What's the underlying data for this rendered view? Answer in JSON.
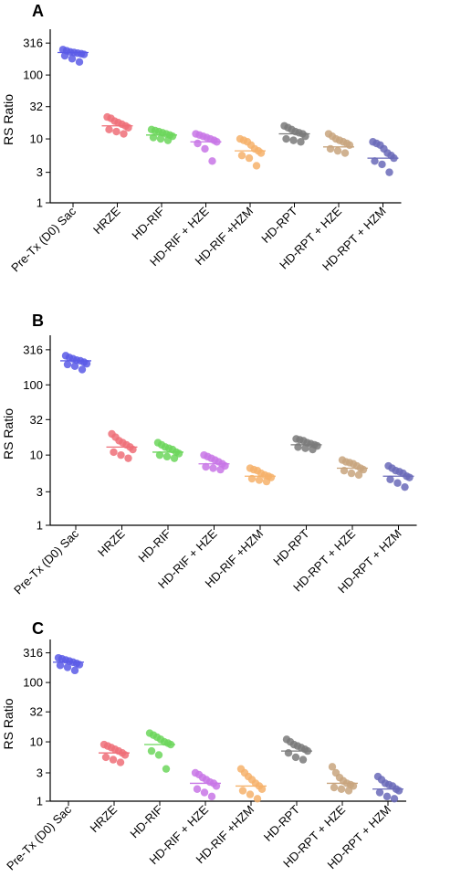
{
  "chart_data": [
    {
      "type": "scatter",
      "panel_label": "A",
      "ylabel": "RS Ratio",
      "yscale": "log",
      "ylim": [
        1,
        400
      ],
      "yticks": [
        1,
        3,
        10,
        32,
        100,
        316
      ],
      "categories": [
        "Pre-Tx (D0) Sac",
        "HRZE",
        "HD-RIF",
        "HD-RIF + HZE",
        "HD-RIF +HZM",
        "HD-RPT",
        "HD-RPT + HZE",
        "HD-RPT + HZM"
      ],
      "colors": [
        "#5a5ae6",
        "#ee6e78",
        "#6cd65c",
        "#c876e6",
        "#f6b26b",
        "#7a7a7a",
        "#c8a47e",
        "#6a6ab8"
      ],
      "medians": [
        225,
        16,
        11.5,
        9,
        6.5,
        12,
        7.5,
        5
      ],
      "points": [
        [
          250,
          240,
          230,
          225,
          220,
          215,
          210,
          200,
          180,
          160
        ],
        [
          22,
          21,
          19,
          18,
          17,
          16,
          15,
          14,
          13,
          12
        ],
        [
          14,
          13.5,
          13,
          12.5,
          12,
          11.5,
          11,
          10.5,
          10,
          9.5
        ],
        [
          12,
          11.5,
          11,
          10.5,
          10,
          9.5,
          9,
          8.5,
          7,
          4.5
        ],
        [
          10,
          9.5,
          9,
          8,
          7,
          6.5,
          6,
          5.5,
          5,
          3.8
        ],
        [
          16,
          15,
          14,
          13,
          12.5,
          12,
          11,
          10,
          9.5,
          9
        ],
        [
          12,
          11,
          10,
          9.5,
          9,
          8.5,
          8,
          7,
          6.5,
          6
        ],
        [
          9,
          8.5,
          8,
          7,
          6,
          5.5,
          5,
          4.5,
          4,
          3
        ]
      ]
    },
    {
      "type": "scatter",
      "panel_label": "B",
      "ylabel": "RS Ratio",
      "yscale": "log",
      "ylim": [
        1,
        400
      ],
      "yticks": [
        1,
        3,
        10,
        32,
        100,
        316
      ],
      "categories": [
        "Pre-Tx (D0) Sac",
        "HRZE",
        "HD-RIF",
        "HD-RIF + HZE",
        "HD-RIF +HZM",
        "HD-RPT",
        "HD-RPT + HZE",
        "HD-RPT + HZM"
      ],
      "colors": [
        "#5a5ae6",
        "#ee6e78",
        "#6cd65c",
        "#c876e6",
        "#f6b26b",
        "#7a7a7a",
        "#c8a47e",
        "#6a6ab8"
      ],
      "medians": [
        220,
        13,
        11,
        7.5,
        5,
        14,
        6.5,
        5
      ],
      "points": [
        [
          260,
          245,
          235,
          225,
          220,
          210,
          200,
          195,
          185,
          165
        ],
        [
          20,
          18,
          16,
          15,
          14,
          13,
          12,
          11,
          10,
          9
        ],
        [
          15,
          14,
          13,
          12.5,
          12,
          11,
          10.5,
          10,
          9.5,
          9
        ],
        [
          10,
          9.5,
          9,
          8.5,
          8,
          7.5,
          7,
          6.8,
          6.5,
          6.2
        ],
        [
          6.5,
          6.2,
          6,
          5.5,
          5.2,
          5,
          4.8,
          4.6,
          4.4,
          4.2
        ],
        [
          17,
          16.5,
          16,
          15,
          14.5,
          14,
          13.5,
          13,
          12.5,
          12
        ],
        [
          8.5,
          8,
          7.8,
          7.5,
          7,
          6.5,
          6.2,
          6,
          5.5,
          5.2
        ],
        [
          7,
          6.5,
          6,
          5.8,
          5.5,
          5,
          4.8,
          4.5,
          4,
          3.5
        ]
      ]
    },
    {
      "type": "scatter",
      "panel_label": "C",
      "ylabel": "RS Ratio",
      "yscale": "log",
      "ylim": [
        1,
        400
      ],
      "yticks": [
        1,
        3,
        10,
        32,
        100,
        316
      ],
      "categories": [
        "Pre-Tx (D0) Sac",
        "HRZE",
        "HD-RIF",
        "HD-RIF + HZE",
        "HD-RIF +HZM",
        "HD-RPT",
        "HD-RPT + HZE",
        "HD-RPT + HZM"
      ],
      "colors": [
        "#5a5ae6",
        "#ee6e78",
        "#6cd65c",
        "#c876e6",
        "#f6b26b",
        "#7a7a7a",
        "#c8a47e",
        "#6a6ab8"
      ],
      "medians": [
        220,
        6.5,
        9,
        2,
        1.8,
        7,
        2,
        1.6
      ],
      "points": [
        [
          260,
          250,
          240,
          230,
          220,
          210,
          200,
          195,
          180,
          160
        ],
        [
          9,
          8.5,
          8,
          7.5,
          7,
          6.5,
          6,
          5.5,
          5,
          4.5
        ],
        [
          14,
          13,
          12,
          11,
          10,
          9.5,
          9,
          7,
          6,
          3.5
        ],
        [
          3,
          2.8,
          2.5,
          2.3,
          2.1,
          2,
          1.8,
          1.6,
          1.4,
          1.2
        ],
        [
          3.5,
          3,
          2.6,
          2.3,
          2,
          1.8,
          1.6,
          1.5,
          1.3,
          1.1
        ],
        [
          11,
          10,
          9,
          8.5,
          8,
          7.5,
          7,
          6.5,
          5.5,
          5
        ],
        [
          3.8,
          3,
          2.5,
          2.2,
          2,
          1.9,
          1.8,
          1.7,
          1.6,
          1.5
        ],
        [
          2.6,
          2.3,
          2,
          1.9,
          1.8,
          1.6,
          1.5,
          1.4,
          1.2,
          1.1
        ]
      ]
    }
  ]
}
